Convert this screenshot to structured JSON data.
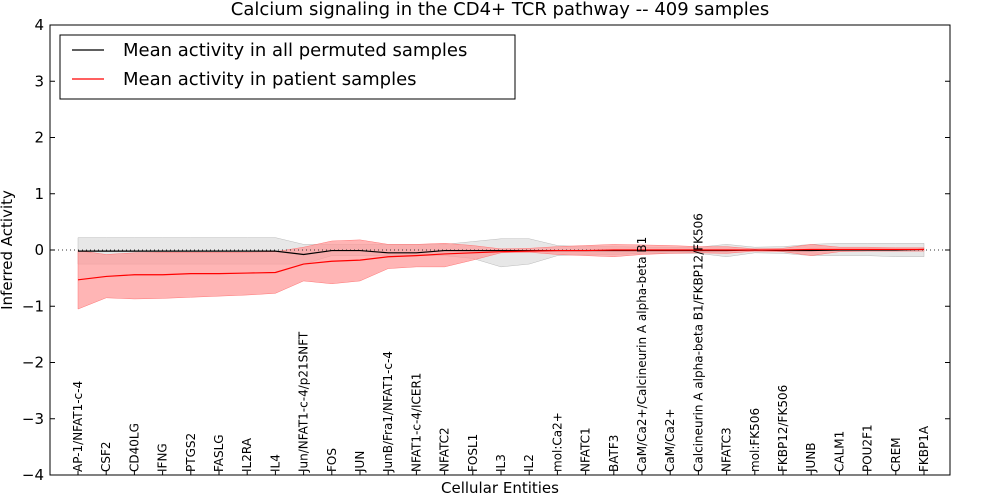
{
  "chart_data": {
    "type": "line",
    "title": "Calcium signaling in the CD4+ TCR pathway -- 409 samples",
    "xlabel": "Cellular Entities",
    "ylabel": "Inferred Activity",
    "ylim": [
      -4,
      4
    ],
    "yticks": [
      -4,
      -3,
      -2,
      -1,
      0,
      1,
      2,
      3,
      4
    ],
    "ytick_labels": [
      "−4",
      "−3",
      "−2",
      "−1",
      "0",
      "1",
      "2",
      "3",
      "4"
    ],
    "legend_position": "top-left",
    "categories": [
      "AP-1/NFAT1-c-4",
      "CSF2",
      "CD40LG",
      "IFNG",
      "PTGS2",
      "FASLG",
      "IL2RA",
      "IL4",
      "Jun/NFAT1-c-4/p21SNFT",
      "FOS",
      "JUN",
      "JunB/Fra1/NFAT1-c-4",
      "NFAT1-c-4/ICER1",
      "NFATC2",
      "FOSL1",
      "IL3",
      "IL2",
      "mol:Ca2+",
      "NFATC1",
      "BATF3",
      "CaM/Ca2+/Calcineurin A alpha-beta B1",
      "CaM/Ca2+",
      "Calcineurin A alpha-beta B1/FKBP12/FK506",
      "NFATC3",
      "mol:FK506",
      "FKBP12/FK506",
      "JUNB",
      "CALM1",
      "POU2F1",
      "CREM",
      "FKBP1A"
    ],
    "series": [
      {
        "name": "Mean activity in all permuted samples",
        "color": "#000000",
        "band_color": "#d3d3d3",
        "values": [
          -0.02,
          -0.02,
          -0.02,
          -0.02,
          -0.02,
          -0.02,
          -0.02,
          -0.02,
          -0.08,
          -0.01,
          -0.01,
          -0.05,
          -0.05,
          -0.01,
          -0.01,
          -0.01,
          -0.01,
          -0.01,
          -0.01,
          -0.01,
          -0.01,
          -0.01,
          -0.01,
          -0.01,
          0.0,
          -0.01,
          -0.01,
          0.0,
          0.0,
          0.0,
          0.01
        ],
        "lower": [
          -0.25,
          -0.25,
          -0.25,
          -0.25,
          -0.25,
          -0.25,
          -0.25,
          -0.25,
          -0.25,
          -0.1,
          -0.1,
          -0.1,
          -0.1,
          -0.1,
          -0.15,
          -0.3,
          -0.25,
          -0.1,
          -0.08,
          -0.08,
          -0.06,
          -0.06,
          -0.06,
          -0.12,
          -0.05,
          -0.06,
          -0.1,
          -0.1,
          -0.1,
          -0.12,
          -0.12
        ],
        "upper": [
          0.22,
          0.22,
          0.22,
          0.22,
          0.22,
          0.22,
          0.22,
          0.22,
          0.1,
          0.1,
          0.1,
          0.1,
          0.1,
          0.1,
          0.15,
          0.2,
          0.2,
          0.08,
          0.06,
          0.06,
          0.05,
          0.05,
          0.05,
          0.1,
          0.05,
          0.06,
          0.1,
          0.12,
          0.12,
          0.12,
          0.12
        ]
      },
      {
        "name": "Mean activity in patient samples",
        "color": "#ff0000",
        "band_color": "#ff9999",
        "values": [
          -0.53,
          -0.47,
          -0.44,
          -0.44,
          -0.42,
          -0.42,
          -0.41,
          -0.4,
          -0.25,
          -0.2,
          -0.18,
          -0.12,
          -0.1,
          -0.07,
          -0.05,
          -0.03,
          -0.02,
          -0.01,
          -0.01,
          0.0,
          0.0,
          0.0,
          0.0,
          0.0,
          0.0,
          0.0,
          0.01,
          0.01,
          0.01,
          0.01,
          0.01
        ],
        "lower": [
          -1.05,
          -0.85,
          -0.87,
          -0.86,
          -0.84,
          -0.82,
          -0.8,
          -0.77,
          -0.55,
          -0.6,
          -0.55,
          -0.33,
          -0.3,
          -0.3,
          -0.18,
          -0.05,
          -0.04,
          -0.08,
          -0.1,
          -0.12,
          -0.08,
          -0.06,
          -0.05,
          -0.06,
          -0.02,
          -0.03,
          -0.1,
          -0.03,
          -0.02,
          -0.02,
          -0.02
        ],
        "upper": [
          -0.01,
          -0.08,
          -0.05,
          -0.04,
          -0.04,
          -0.04,
          -0.04,
          -0.03,
          0.05,
          0.16,
          0.18,
          0.1,
          0.1,
          0.12,
          0.08,
          0.02,
          0.03,
          0.06,
          0.08,
          0.1,
          0.09,
          0.08,
          0.06,
          0.06,
          0.02,
          0.03,
          0.1,
          0.05,
          0.05,
          0.04,
          0.04
        ]
      }
    ]
  }
}
